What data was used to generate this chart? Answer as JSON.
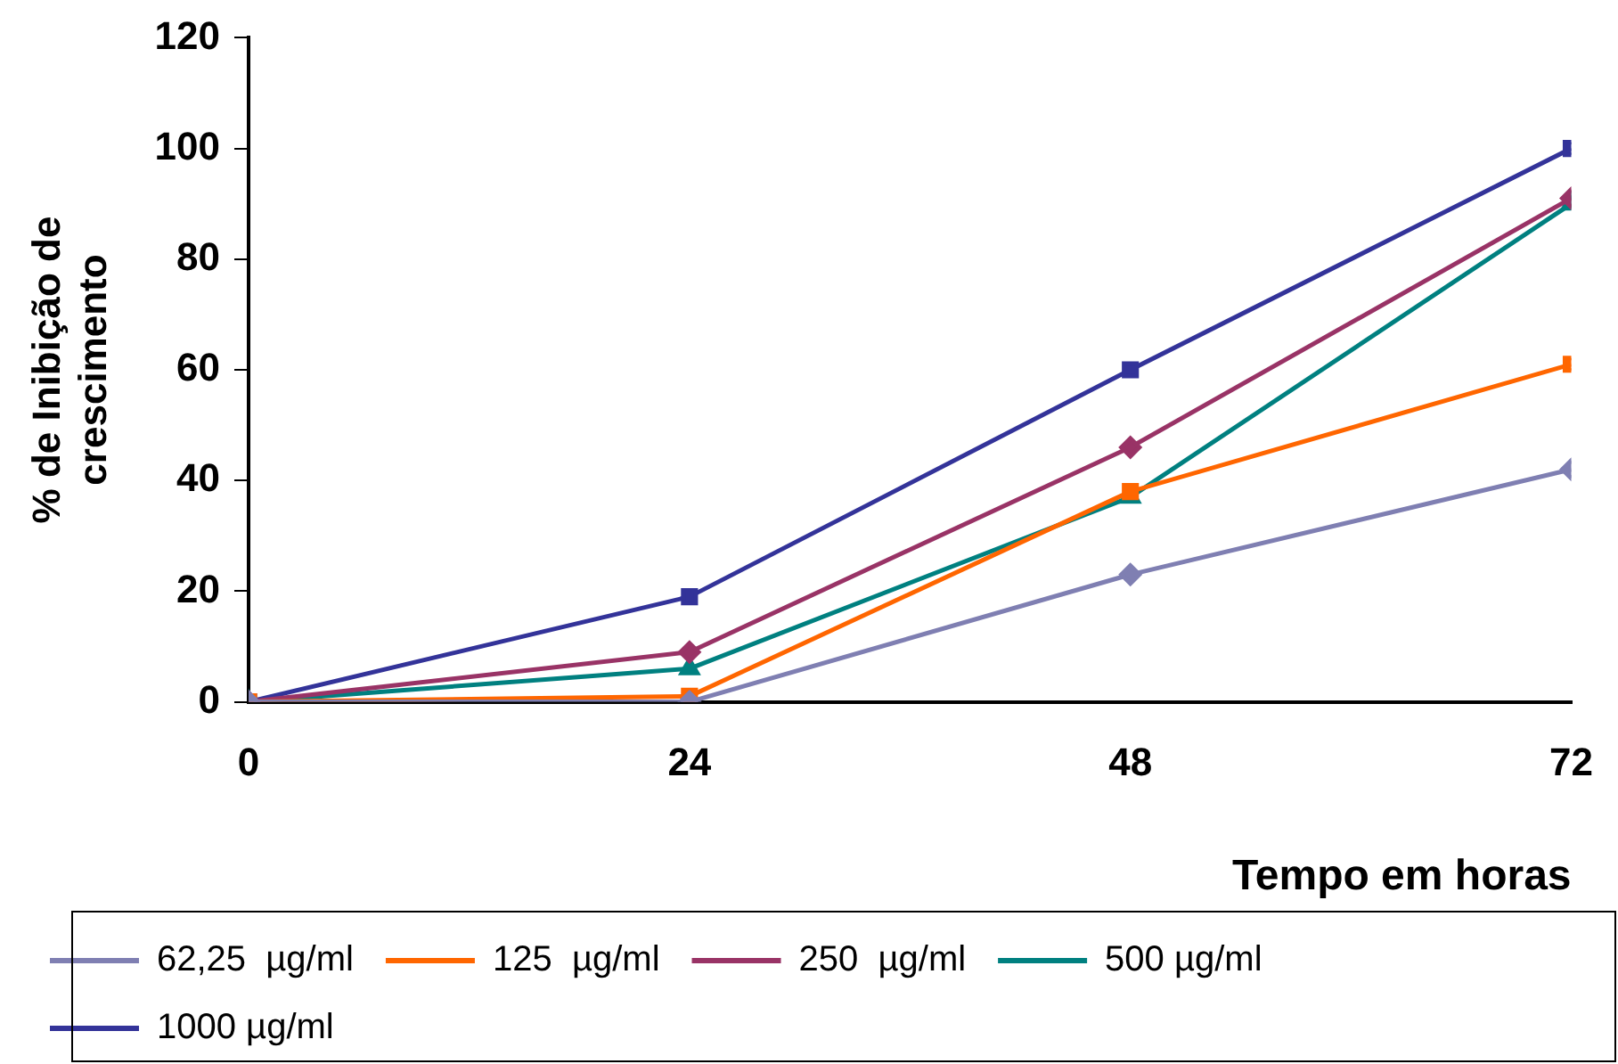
{
  "chart_data": {
    "type": "line",
    "xlabel": "Tempo em horas",
    "ylabel": "% de Inibição de crescimento",
    "x": [
      0,
      24,
      48,
      72
    ],
    "xlim": [
      0,
      72
    ],
    "xticks": [
      0,
      24,
      48,
      72
    ],
    "ylim": [
      0,
      120
    ],
    "yticks": [
      0,
      20,
      40,
      60,
      80,
      100,
      120
    ],
    "grid": false,
    "legend": "bottom",
    "line_style": "solid",
    "series": [
      {
        "name": "62,25  µg/ml",
        "color": "#7f7fb2",
        "marker": "diamond",
        "values": [
          0,
          0,
          23,
          42
        ]
      },
      {
        "name": "125  µg/ml",
        "color": "#ff6600",
        "marker": "square",
        "values": [
          0,
          1,
          38,
          61
        ]
      },
      {
        "name": "250  µg/ml",
        "color": "#993366",
        "marker": "diamond",
        "values": [
          0,
          9,
          46,
          91
        ]
      },
      {
        "name": "500 µg/ml",
        "color": "#008080",
        "marker": "triangle",
        "values": [
          0,
          6,
          37,
          90
        ]
      },
      {
        "name": "1000 µg/ml",
        "color": "#333399",
        "marker": "square",
        "values": [
          0,
          19,
          60,
          100
        ]
      }
    ]
  }
}
